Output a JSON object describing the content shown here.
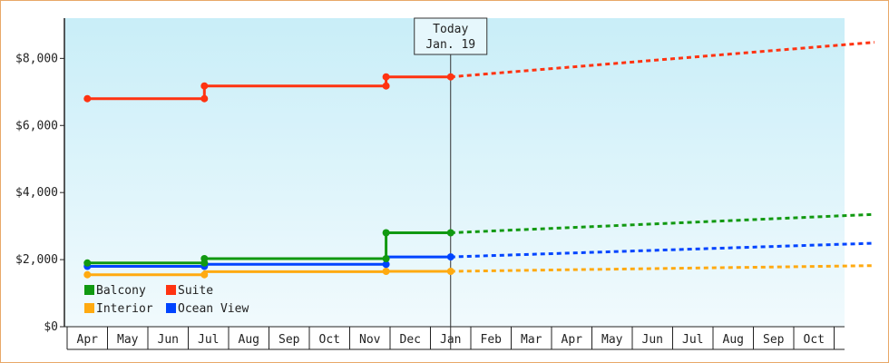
{
  "chart_data": {
    "type": "line",
    "y_ticks": [
      "$0",
      "$2,000",
      "$4,000",
      "$6,000",
      "$8,000"
    ],
    "ylim": [
      0,
      9200
    ],
    "x_months": [
      "Apr",
      "May",
      "Jun",
      "Jul",
      "Aug",
      "Sep",
      "Oct",
      "Nov",
      "Dec",
      "Jan",
      "Feb",
      "Mar",
      "Apr",
      "May",
      "Jun",
      "Jul",
      "Aug",
      "Sep",
      "Oct"
    ],
    "today": {
      "line1": "Today",
      "line2": "Jan. 19",
      "x": 9.0
    },
    "series": [
      {
        "name": "Balcony",
        "color": "#119911",
        "history": [
          [
            0,
            1900
          ],
          [
            2.9,
            1900
          ],
          [
            2.9,
            2030
          ],
          [
            7.4,
            2030
          ],
          [
            7.4,
            2800
          ],
          [
            9.0,
            2800
          ]
        ],
        "markers": [
          [
            0,
            1900
          ],
          [
            2.9,
            1900
          ],
          [
            2.9,
            2030
          ],
          [
            7.4,
            2030
          ],
          [
            7.4,
            2800
          ],
          [
            9.0,
            2800
          ]
        ],
        "forecast": [
          [
            9.0,
            2800
          ],
          [
            19.5,
            3350
          ]
        ]
      },
      {
        "name": "Suite",
        "color": "#ff3311",
        "history": [
          [
            0,
            6800
          ],
          [
            2.9,
            6800
          ],
          [
            2.9,
            7180
          ],
          [
            7.4,
            7180
          ],
          [
            7.4,
            7450
          ],
          [
            9.0,
            7450
          ]
        ],
        "markers": [
          [
            0,
            6800
          ],
          [
            2.9,
            6800
          ],
          [
            2.9,
            7180
          ],
          [
            7.4,
            7180
          ],
          [
            7.4,
            7450
          ],
          [
            9.0,
            7450
          ]
        ],
        "forecast": [
          [
            9.0,
            7450
          ],
          [
            19.5,
            8480
          ]
        ]
      },
      {
        "name": "Interior",
        "color": "#ffaa11",
        "history": [
          [
            0,
            1550
          ],
          [
            2.9,
            1550
          ],
          [
            2.9,
            1640
          ],
          [
            7.4,
            1640
          ],
          [
            7.4,
            1650
          ],
          [
            9.0,
            1650
          ]
        ],
        "markers": [
          [
            0,
            1550
          ],
          [
            2.9,
            1550
          ],
          [
            7.4,
            1650
          ],
          [
            9.0,
            1650
          ]
        ],
        "forecast": [
          [
            9.0,
            1650
          ],
          [
            19.5,
            1820
          ]
        ]
      },
      {
        "name": "Ocean View",
        "color": "#0044ff",
        "history": [
          [
            0,
            1800
          ],
          [
            2.9,
            1800
          ],
          [
            2.9,
            1860
          ],
          [
            7.4,
            1860
          ],
          [
            7.4,
            2080
          ],
          [
            9.0,
            2080
          ]
        ],
        "markers": [
          [
            0,
            1800
          ],
          [
            2.9,
            1800
          ],
          [
            7.4,
            1860
          ],
          [
            9.0,
            2080
          ]
        ],
        "forecast": [
          [
            9.0,
            2080
          ],
          [
            19.5,
            2490
          ]
        ]
      }
    ],
    "legend": [
      [
        "Balcony",
        "Suite"
      ],
      [
        "Interior",
        "Ocean View"
      ]
    ],
    "grid": false,
    "legend_position": "bottom-left"
  },
  "colors": {
    "frame_border": "#e8a868",
    "plot_top": "#c9eef8",
    "plot_bottom": "#f1fafd",
    "axis": "#222222",
    "today_line": "#333333"
  }
}
